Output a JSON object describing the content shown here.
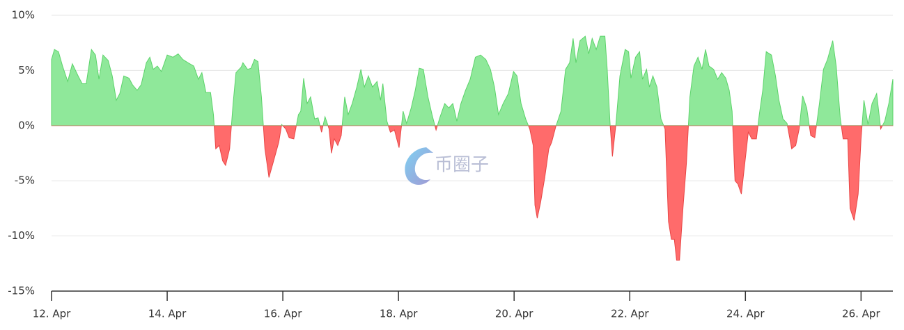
{
  "chart_data": {
    "type": "area",
    "watermark": "币圈子",
    "x": [
      12.0,
      12.05,
      12.12,
      12.19,
      12.28,
      12.36,
      12.46,
      12.53,
      12.6,
      12.69,
      12.76,
      12.82,
      12.89,
      12.98,
      13.05,
      13.12,
      13.18,
      13.25,
      13.34,
      13.4,
      13.48,
      13.55,
      13.64,
      13.7,
      13.76,
      13.83,
      13.9,
      14.0,
      14.1,
      14.19,
      14.27,
      14.36,
      14.46,
      14.54,
      14.6,
      14.67,
      14.75,
      14.8,
      14.84,
      14.9,
      14.96,
      15.01,
      15.08,
      15.14,
      15.19,
      15.28,
      15.31,
      15.39,
      15.45,
      15.51,
      15.57,
      15.63,
      15.69,
      15.76,
      15.83,
      15.93,
      15.98,
      16.05,
      16.11,
      16.19,
      16.27,
      16.31,
      16.36,
      16.42,
      16.48,
      16.55,
      16.61,
      16.67,
      16.73,
      16.8,
      16.84,
      16.89,
      16.95,
      17.01,
      17.07,
      17.13,
      17.2,
      17.28,
      17.35,
      17.41,
      17.48,
      17.55,
      17.63,
      17.69,
      17.73,
      17.8,
      17.86,
      17.93,
      18.01,
      18.08,
      18.14,
      18.22,
      18.29,
      18.36,
      18.43,
      18.51,
      18.58,
      18.65,
      18.72,
      18.8,
      18.87,
      18.94,
      19.01,
      19.08,
      19.16,
      19.24,
      19.33,
      19.42,
      19.51,
      19.59,
      19.66,
      19.73,
      19.81,
      19.9,
      19.99,
      20.05,
      20.12,
      20.2,
      20.27,
      20.33,
      20.36,
      20.4,
      20.46,
      20.53,
      20.6,
      20.65,
      20.72,
      20.81,
      20.89,
      20.96,
      21.02,
      21.07,
      21.14,
      21.23,
      21.29,
      21.35,
      21.42,
      21.49,
      21.57,
      21.61,
      21.66,
      21.7,
      21.76,
      21.83,
      21.92,
      21.98,
      22.02,
      22.1,
      22.17,
      22.22,
      22.29,
      22.34,
      22.4,
      22.47,
      22.54,
      22.61,
      22.67,
      22.72,
      22.77,
      22.81,
      22.86,
      22.92,
      22.98,
      23.04,
      23.11,
      23.18,
      23.25,
      23.31,
      23.37,
      23.45,
      23.52,
      23.59,
      23.66,
      23.72,
      23.77,
      23.82,
      23.87,
      23.93,
      23.99,
      24.05,
      24.11,
      24.19,
      24.24,
      24.3,
      24.36,
      24.45,
      24.52,
      24.58,
      24.65,
      24.72,
      24.8,
      24.87,
      24.93,
      24.99,
      25.06,
      25.13,
      25.2,
      25.28,
      25.35,
      25.42,
      25.51,
      25.57,
      25.64,
      25.69,
      25.77,
      25.81,
      25.88,
      25.95,
      26.0,
      26.05,
      26.12,
      26.19,
      26.27,
      26.34,
      26.41,
      26.48,
      26.55
    ],
    "series": [
      {
        "color": "#8fe89a",
        "line_color": "#5cd36a",
        "negative_color": "#ff6b6b",
        "negative_line_color": "#e84545",
        "values": [
          6.0,
          6.9,
          6.7,
          5.4,
          4.0,
          5.6,
          4.5,
          3.8,
          3.8,
          6.9,
          6.4,
          4.2,
          6.4,
          5.9,
          4.5,
          2.3,
          2.9,
          4.5,
          4.3,
          3.7,
          3.2,
          3.7,
          5.7,
          6.2,
          5.1,
          5.4,
          4.9,
          6.4,
          6.2,
          6.5,
          6.0,
          5.7,
          5.4,
          4.2,
          4.8,
          3.0,
          3.0,
          1.0,
          -2.1,
          -1.8,
          -3.2,
          -3.6,
          -2.1,
          2.0,
          4.8,
          5.3,
          5.7,
          5.1,
          5.2,
          6.0,
          5.8,
          2.6,
          -2.1,
          -4.7,
          -3.4,
          -1.5,
          0.1,
          -0.3,
          -1.1,
          -1.2,
          1.0,
          1.3,
          4.3,
          2.0,
          2.6,
          0.6,
          0.7,
          -0.6,
          0.8,
          -0.3,
          -2.5,
          -1.2,
          -1.8,
          -0.9,
          2.6,
          1.0,
          2.0,
          3.5,
          5.1,
          3.5,
          4.5,
          3.5,
          4.0,
          2.3,
          3.8,
          0.4,
          -0.6,
          -0.4,
          -2.0,
          1.3,
          0.2,
          1.6,
          3.2,
          5.2,
          5.1,
          2.6,
          1.0,
          -0.4,
          0.8,
          2.0,
          1.6,
          2.0,
          0.4,
          2.0,
          3.2,
          4.2,
          6.2,
          6.4,
          6.0,
          5.1,
          3.5,
          1.0,
          2.0,
          2.9,
          4.9,
          4.5,
          2.0,
          0.6,
          -0.3,
          -1.8,
          -7.2,
          -8.4,
          -6.9,
          -4.7,
          -2.1,
          -1.5,
          -0.1,
          1.3,
          5.1,
          5.7,
          7.9,
          5.7,
          7.7,
          8.1,
          6.5,
          7.9,
          6.9,
          8.1,
          8.1,
          5.1,
          0.1,
          -2.8,
          0.1,
          4.5,
          6.9,
          6.7,
          4.3,
          6.2,
          6.7,
          4.2,
          5.1,
          3.5,
          4.5,
          3.5,
          0.6,
          -0.3,
          -8.7,
          -10.3,
          -10.3,
          -12.2,
          -12.2,
          -7.5,
          -3.4,
          2.6,
          5.4,
          6.2,
          5.1,
          6.9,
          5.4,
          5.1,
          4.2,
          4.8,
          4.3,
          3.2,
          1.3,
          -5.0,
          -5.3,
          -6.2,
          -3.4,
          -0.6,
          -1.2,
          -1.2,
          1.0,
          3.2,
          6.7,
          6.4,
          4.5,
          2.3,
          0.6,
          0.2,
          -2.1,
          -1.8,
          -0.3,
          2.7,
          1.6,
          -0.9,
          -1.1,
          2.0,
          5.1,
          6.0,
          7.7,
          5.4,
          0.7,
          -1.2,
          -1.2,
          -7.5,
          -8.6,
          -6.2,
          -1.2,
          2.3,
          0.1,
          2.0,
          2.9,
          -0.3,
          0.4,
          2.0,
          4.2
        ]
      }
    ],
    "xlim": [
      12,
      26.55
    ],
    "xticks": [
      {
        "value": 12,
        "label": "12. Apr"
      },
      {
        "value": 14,
        "label": "14. Apr"
      },
      {
        "value": 16,
        "label": "16. Apr"
      },
      {
        "value": 18,
        "label": "18. Apr"
      },
      {
        "value": 20,
        "label": "20. Apr"
      },
      {
        "value": 22,
        "label": "22. Apr"
      },
      {
        "value": 24,
        "label": "24. Apr"
      },
      {
        "value": 26,
        "label": "26. Apr"
      }
    ],
    "ylim": [
      -15,
      10
    ],
    "yticks": [
      {
        "value": -15,
        "label": "-15%"
      },
      {
        "value": -10,
        "label": "-10%"
      },
      {
        "value": -5,
        "label": "-5%"
      },
      {
        "value": 0,
        "label": "0%"
      },
      {
        "value": 5,
        "label": "5%"
      },
      {
        "value": 10,
        "label": "10%"
      }
    ],
    "grid": true
  }
}
